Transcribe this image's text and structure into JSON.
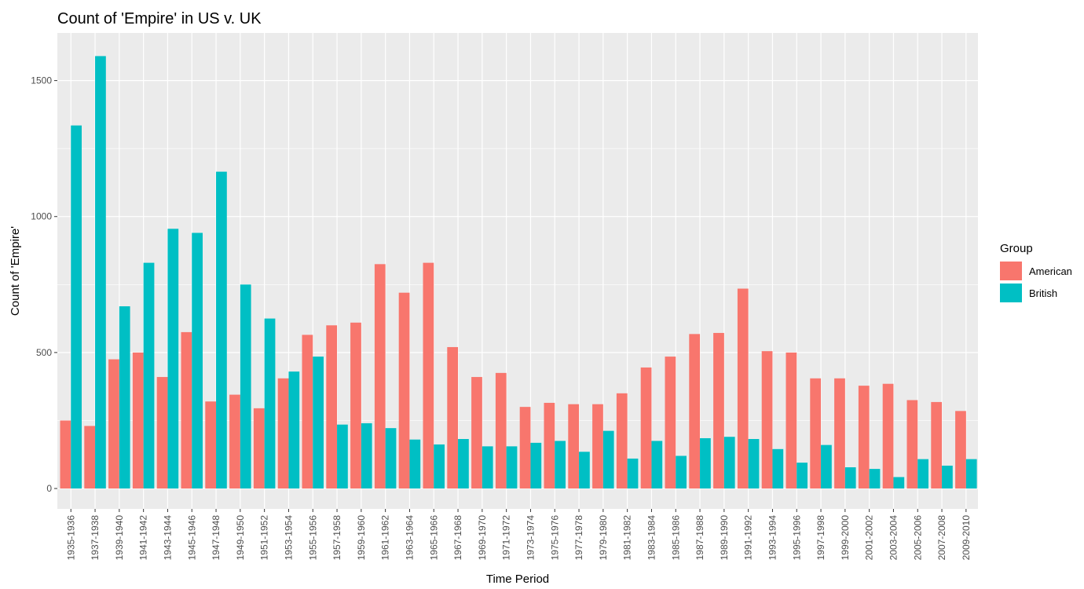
{
  "chart_data": {
    "type": "bar",
    "title": "Count of 'Empire' in US v. UK",
    "xlabel": "Time Period",
    "ylabel": "Count of 'Empire'",
    "ylim": [
      -75,
      1675
    ],
    "yticks": [
      0,
      500,
      1000,
      1500
    ],
    "grid": true,
    "legend": {
      "title": "Group",
      "placement": "right"
    },
    "categories": [
      "1935-1936",
      "1937-1938",
      "1939-1940",
      "1941-1942",
      "1943-1944",
      "1945-1946",
      "1947-1948",
      "1949-1950",
      "1951-1952",
      "1953-1954",
      "1955-1956",
      "1957-1958",
      "1959-1960",
      "1961-1962",
      "1963-1964",
      "1965-1966",
      "1967-1968",
      "1969-1970",
      "1971-1972",
      "1973-1974",
      "1975-1976",
      "1977-1978",
      "1979-1980",
      "1981-1982",
      "1983-1984",
      "1985-1986",
      "1987-1988",
      "1989-1990",
      "1991-1992",
      "1993-1994",
      "1995-1996",
      "1997-1998",
      "1999-2000",
      "2001-2002",
      "2003-2004",
      "2005-2006",
      "2007-2008",
      "2009-2010"
    ],
    "series": [
      {
        "name": "American",
        "color": "#F8766D",
        "values": [
          250,
          230,
          475,
          500,
          410,
          575,
          320,
          345,
          295,
          405,
          565,
          600,
          610,
          825,
          720,
          830,
          520,
          410,
          425,
          300,
          315,
          310,
          310,
          350,
          445,
          485,
          568,
          572,
          735,
          505,
          500,
          405,
          405,
          378,
          385,
          325,
          318,
          285
        ]
      },
      {
        "name": "British",
        "color": "#00BFC4",
        "values": [
          1335,
          1590,
          670,
          830,
          955,
          940,
          1165,
          750,
          625,
          430,
          485,
          235,
          240,
          222,
          180,
          162,
          182,
          155,
          155,
          168,
          175,
          135,
          212,
          110,
          175,
          120,
          185,
          190,
          182,
          145,
          95,
          160,
          78,
          72,
          42,
          108,
          84,
          108
        ]
      }
    ]
  }
}
